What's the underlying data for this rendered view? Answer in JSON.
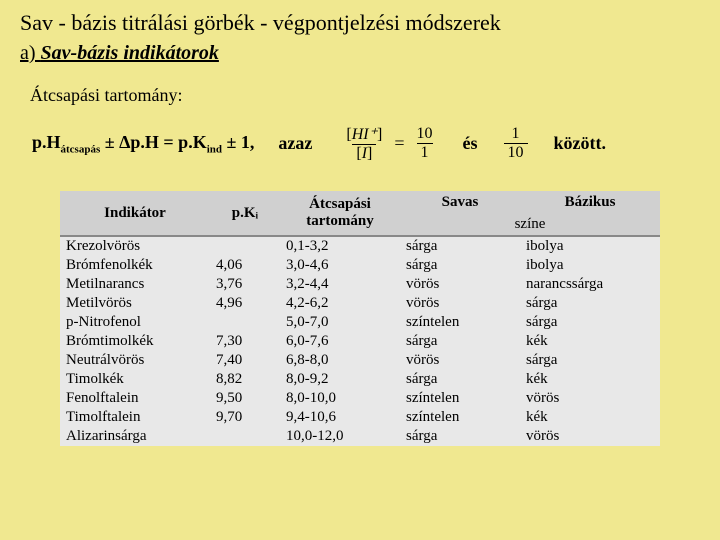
{
  "title": "Sav - bázis titrálási görbék - végpontjelzési módszerek",
  "subtitle_prefix": "a) ",
  "subtitle_italic": "Sav-bázis indikátorok",
  "section_label": "Átcsapási tartomány:",
  "formula": {
    "part1": "p.H",
    "sub1": "átcsapás",
    "part2": " ± Δp.H = p.K",
    "sub2": "ind",
    "part3": " ± 1,",
    "azaz": "azaz",
    "frac1_num": "HI⁺",
    "frac1_den": "I",
    "eq1": "=",
    "ratio1_num": "10",
    "ratio1_den": "1",
    "es": "és",
    "ratio2_num": "1",
    "ratio2_den": "10",
    "kozott": "között."
  },
  "table": {
    "headers": {
      "indicator": "Indikátor",
      "pki": "p.Kᵢ",
      "range": "Átcsapási tartomány",
      "acid": "Savas",
      "base": "Bázikus",
      "szine": "színe"
    },
    "rows": [
      {
        "name": "Krezolvörös",
        "pki": "",
        "range": "0,1-3,2",
        "acid": "sárga",
        "base": "ibolya"
      },
      {
        "name": "Brómfenolkék",
        "pki": "4,06",
        "range": "3,0-4,6",
        "acid": "sárga",
        "base": "ibolya"
      },
      {
        "name": "Metilnarancs",
        "pki": "3,76",
        "range": "3,2-4,4",
        "acid": "vörös",
        "base": "narancssárga"
      },
      {
        "name": "Metilvörös",
        "pki": "4,96",
        "range": "4,2-6,2",
        "acid": "vörös",
        "base": "sárga"
      },
      {
        "name": "p-Nitrofenol",
        "pki": "",
        "range": "5,0-7,0",
        "acid": "színtelen",
        "base": "sárga"
      },
      {
        "name": "Brómtimolkék",
        "pki": "7,30",
        "range": "6,0-7,6",
        "acid": "sárga",
        "base": "kék"
      },
      {
        "name": "Neutrálvörös",
        "pki": "7,40",
        "range": "6,8-8,0",
        "acid": "vörös",
        "base": "sárga"
      },
      {
        "name": "Timolkék",
        "pki": "8,82",
        "range": "8,0-9,2",
        "acid": "sárga",
        "base": "kék"
      },
      {
        "name": "Fenolftalein",
        "pki": "9,50",
        "range": "8,0-10,0",
        "acid": "színtelen",
        "base": "vörös"
      },
      {
        "name": "Timolftalein",
        "pki": "9,70",
        "range": "9,4-10,6",
        "acid": "színtelen",
        "base": "kék"
      },
      {
        "name": "Alizarinsárga",
        "pki": "",
        "range": "10,0-12,0",
        "acid": "sárga",
        "base": "vörös"
      }
    ]
  }
}
